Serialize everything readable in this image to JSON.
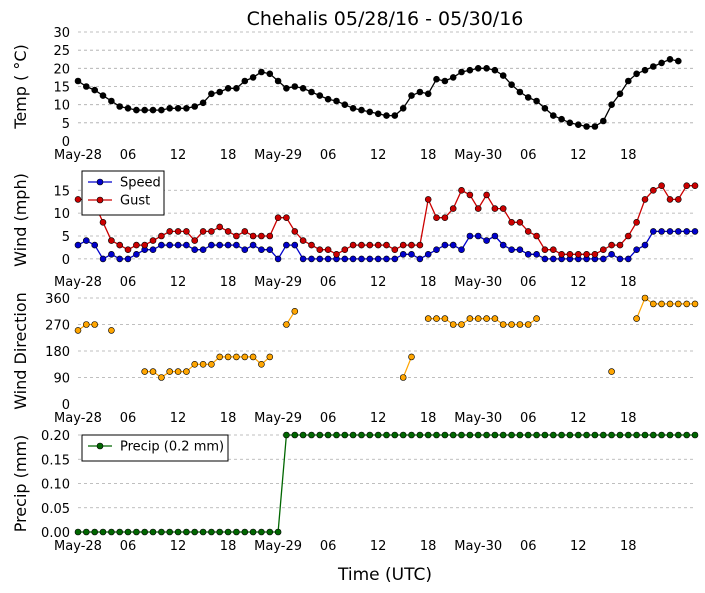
{
  "title": "Chehalis 05/28/16 - 05/30/16",
  "xlabel": "Time (UTC)",
  "xticks": [
    "May-28",
    "06",
    "12",
    "18",
    "May-29",
    "06",
    "12",
    "18",
    "May-30",
    "06",
    "12",
    "18"
  ],
  "colors": {
    "temp": "#000000",
    "speed": "#0000cc",
    "gust": "#cc0000",
    "direction_marker": "#ffa500",
    "precip": "#006600",
    "grid": "#aaaaaa"
  },
  "chart_data": [
    {
      "type": "line",
      "ylabel": "Temp ( °C)",
      "ylim": [
        0,
        30
      ],
      "yticks": [
        "0",
        "5",
        "10",
        "15",
        "20",
        "25",
        "30"
      ],
      "grid": "dashed horizontal",
      "x_unit": "hours since May-28 00 UTC",
      "series": [
        {
          "values": [
            16.5,
            15,
            14,
            12.5,
            11,
            9.5,
            9,
            8.5,
            8.5,
            8.5,
            8.5,
            9,
            9,
            9,
            9.5,
            10.5,
            13,
            13.5,
            14.5,
            14.5,
            16.5,
            17.5,
            19,
            18.5,
            16.5,
            14.5,
            15,
            14.5,
            13.5,
            12.5,
            11.5,
            11,
            10,
            9,
            8.5,
            8,
            7.5,
            7,
            7,
            9,
            12.5,
            13.5,
            13,
            17,
            16.5,
            17.5,
            19,
            19.5,
            20,
            20,
            19.5,
            18,
            15.5,
            13.5,
            12,
            11,
            9,
            7,
            6,
            5,
            4.5,
            4,
            4,
            5.5,
            10,
            13,
            16.5,
            18.5,
            19.5,
            20.5,
            21.5,
            22.5,
            22
          ]
        }
      ]
    },
    {
      "type": "line",
      "ylabel": "Wind (mph)",
      "ylim": [
        -2,
        19
      ],
      "yticks": [
        "0",
        "5",
        "10",
        "15"
      ],
      "grid": "dashed horizontal",
      "legend": "top-left",
      "series": [
        {
          "name": "Speed",
          "values": [
            3,
            4,
            3,
            0,
            1,
            0,
            0,
            1,
            2,
            2,
            3,
            3,
            3,
            3,
            2,
            2,
            3,
            3,
            3,
            3,
            2,
            3,
            2,
            2,
            0,
            3,
            3,
            0,
            0,
            0,
            0,
            0,
            0,
            0,
            0,
            0,
            0,
            0,
            0,
            1,
            1,
            0,
            1,
            2,
            3,
            3,
            2,
            5,
            5,
            4,
            5,
            3,
            2,
            2,
            1,
            1,
            0,
            0,
            0,
            0,
            0,
            0,
            0,
            0,
            1,
            0,
            0,
            2,
            3,
            6,
            6,
            6,
            6,
            6,
            6
          ]
        },
        {
          "name": "Gust",
          "values": [
            13,
            13,
            12,
            8,
            4,
            3,
            2,
            3,
            3,
            4,
            5,
            6,
            6,
            6,
            4,
            6,
            6,
            7,
            6,
            5,
            6,
            5,
            5,
            5,
            9,
            9,
            6,
            4,
            3,
            2,
            2,
            1,
            2,
            3,
            3,
            3,
            3,
            3,
            2,
            3,
            3,
            3,
            13,
            9,
            9,
            11,
            15,
            14,
            11,
            14,
            11,
            11,
            8,
            8,
            6,
            5,
            2,
            2,
            1,
            1,
            1,
            1,
            1,
            2,
            3,
            3,
            5,
            8,
            13,
            15,
            16,
            13,
            13,
            16,
            16
          ]
        }
      ]
    },
    {
      "type": "scatter",
      "ylabel": "Wind Direction",
      "ylim": [
        0,
        360
      ],
      "yticks": [
        "0",
        "90",
        "180",
        "270",
        "360"
      ],
      "grid": "dashed horizontal",
      "series": [
        {
          "values": [
            250,
            270,
            270,
            null,
            250,
            null,
            null,
            null,
            110,
            110,
            90,
            110,
            110,
            110,
            135,
            135,
            135,
            160,
            160,
            160,
            160,
            160,
            135,
            160,
            null,
            270,
            315,
            null,
            null,
            null,
            null,
            null,
            null,
            null,
            null,
            null,
            null,
            null,
            null,
            90,
            160,
            null,
            290,
            290,
            290,
            270,
            270,
            290,
            290,
            290,
            290,
            270,
            270,
            270,
            270,
            290,
            null,
            null,
            null,
            null,
            null,
            null,
            null,
            null,
            110,
            null,
            null,
            290,
            360,
            340,
            340,
            340,
            340,
            340,
            340
          ]
        }
      ]
    },
    {
      "type": "line",
      "ylabel": "Precip (mm)",
      "ylim": [
        0,
        0.2
      ],
      "yticks": [
        "0.00",
        "0.05",
        "0.10",
        "0.15",
        "0.20"
      ],
      "grid": "dashed horizontal",
      "legend": "top-left",
      "series": [
        {
          "name": "Precip (0.2 mm)",
          "values": [
            0,
            0,
            0,
            0,
            0,
            0,
            0,
            0,
            0,
            0,
            0,
            0,
            0,
            0,
            0,
            0,
            0,
            0,
            0,
            0,
            0,
            0,
            0,
            0,
            0,
            0.2,
            0.2,
            0.2,
            0.2,
            0.2,
            0.2,
            0.2,
            0.2,
            0.2,
            0.2,
            0.2,
            0.2,
            0.2,
            0.2,
            0.2,
            0.2,
            0.2,
            0.2,
            0.2,
            0.2,
            0.2,
            0.2,
            0.2,
            0.2,
            0.2,
            0.2,
            0.2,
            0.2,
            0.2,
            0.2,
            0.2,
            0.2,
            0.2,
            0.2,
            0.2,
            0.2,
            0.2,
            0.2,
            0.2,
            0.2,
            0.2,
            0.2,
            0.2,
            0.2,
            0.2,
            0.2,
            0.2,
            0.2,
            0.2,
            0.2
          ]
        }
      ]
    }
  ]
}
